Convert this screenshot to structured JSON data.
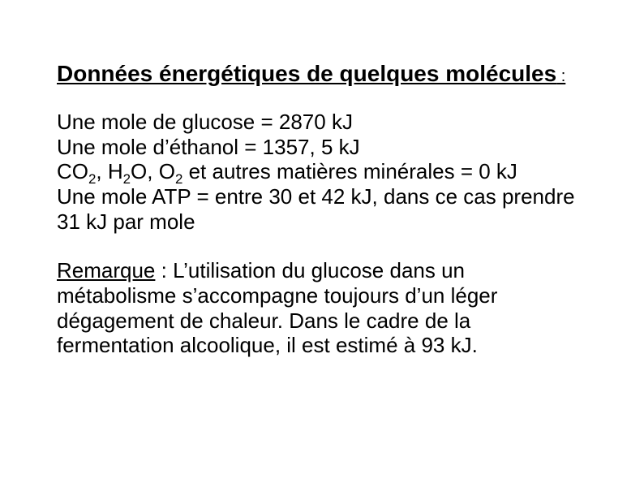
{
  "title": {
    "text": "Données énergétiques de quelques molécules",
    "colon": " :"
  },
  "lines": {
    "l1a": "Une mole de glucose = 2870 k",
    "l1b": "J",
    "l2a": "Une mole d’éthanol = 1357, 5 k",
    "l2b": "J",
    "l3_pre": "CO",
    "l3_sub1": "2",
    "l3_mid1": ", H",
    "l3_sub2": "2",
    "l3_mid2": "O, O",
    "l3_sub3": "2",
    "l3_post": " et autres matières minérales = 0 k",
    "l3_end": "J",
    "l4a": "Une mole ATP = entre 30 et 42 k",
    "l4b": "J, dans ce cas prendre 31 k",
    "l4c": "J par mole"
  },
  "remark": {
    "label": "Remarque",
    "text_a": " : L’utilisation du glucose dans un métabolisme s’accompagne toujours d’un léger dégagement de chaleur. Dans le cadre de la fermentation alcoolique, il est estimé à 93 k",
    "text_b": "J."
  },
  "style": {
    "background_color": "#ffffff",
    "text_color": "#000000",
    "title_fontsize": 28,
    "body_fontsize": 26,
    "font_family": "Arial"
  }
}
